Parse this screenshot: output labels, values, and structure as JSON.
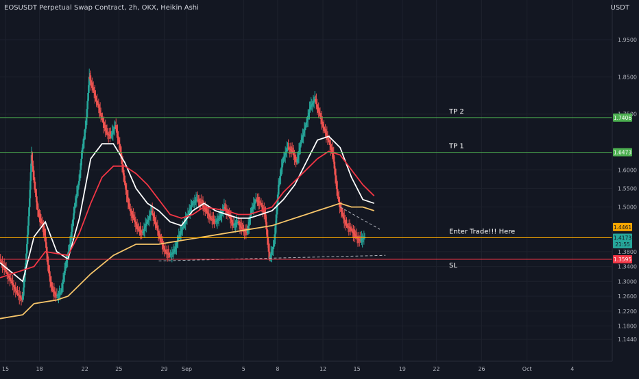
{
  "header": {
    "title": "EOSUSDT Perpetual Swap Contract, 2h, OKX, Heikin Ashi",
    "currency": "USDT"
  },
  "chart_data": {
    "type": "candlestick",
    "title": "EOSUSDT Perpetual Swap Contract, 2h, OKX, Heikin Ashi",
    "ylim": [
      1.1,
      2.02
    ],
    "y_ticks": [
      "1.9500",
      "1.8500",
      "1.7500",
      "1.6000",
      "1.5500",
      "1.5000",
      "1.3800",
      "1.3400",
      "1.3000",
      "1.2600",
      "1.2200",
      "1.1800",
      "1.1440"
    ],
    "y_tick_values": [
      1.95,
      1.85,
      1.75,
      1.6,
      1.55,
      1.5,
      1.38,
      1.34,
      1.3,
      1.26,
      1.22,
      1.18,
      1.144
    ],
    "x_ticks": [
      "15",
      "18",
      "22",
      "25",
      "29",
      "Sep",
      "5",
      "8",
      "12",
      "15",
      "19",
      "22",
      "26",
      "Oct",
      "4"
    ],
    "x_tick_positions": [
      0,
      3,
      7,
      10,
      14,
      16,
      21,
      24,
      28,
      31,
      35,
      38,
      42,
      46,
      50
    ],
    "x_max": 54,
    "price_series": [
      [
        0,
        1.36
      ],
      [
        0.5,
        1.33
      ],
      [
        1,
        1.3
      ],
      [
        1.5,
        1.27
      ],
      [
        2,
        1.25
      ],
      [
        2.3,
        1.35
      ],
      [
        2.6,
        1.5
      ],
      [
        2.8,
        1.64
      ],
      [
        3.1,
        1.55
      ],
      [
        3.4,
        1.48
      ],
      [
        3.7,
        1.46
      ],
      [
        4,
        1.42
      ],
      [
        4.3,
        1.33
      ],
      [
        4.6,
        1.28
      ],
      [
        5,
        1.26
      ],
      [
        5.4,
        1.27
      ],
      [
        5.8,
        1.34
      ],
      [
        6.2,
        1.4
      ],
      [
        6.6,
        1.5
      ],
      [
        7,
        1.57
      ],
      [
        7.3,
        1.66
      ],
      [
        7.6,
        1.72
      ],
      [
        7.9,
        1.85
      ],
      [
        8.2,
        1.82
      ],
      [
        8.6,
        1.78
      ],
      [
        9,
        1.74
      ],
      [
        9.4,
        1.7
      ],
      [
        9.8,
        1.69
      ],
      [
        10.2,
        1.72
      ],
      [
        10.6,
        1.66
      ],
      [
        11,
        1.57
      ],
      [
        11.4,
        1.5
      ],
      [
        11.8,
        1.47
      ],
      [
        12.2,
        1.44
      ],
      [
        12.6,
        1.43
      ],
      [
        13,
        1.46
      ],
      [
        13.4,
        1.49
      ],
      [
        13.8,
        1.45
      ],
      [
        14.2,
        1.41
      ],
      [
        14.6,
        1.38
      ],
      [
        15,
        1.37
      ],
      [
        15.4,
        1.38
      ],
      [
        15.8,
        1.42
      ],
      [
        16.2,
        1.45
      ],
      [
        16.6,
        1.48
      ],
      [
        17,
        1.51
      ],
      [
        17.4,
        1.52
      ],
      [
        17.8,
        1.51
      ],
      [
        18.2,
        1.49
      ],
      [
        18.6,
        1.47
      ],
      [
        19,
        1.46
      ],
      [
        19.4,
        1.47
      ],
      [
        19.8,
        1.5
      ],
      [
        20.2,
        1.48
      ],
      [
        20.6,
        1.45
      ],
      [
        21,
        1.46
      ],
      [
        21.4,
        1.44
      ],
      [
        21.8,
        1.43
      ],
      [
        22.2,
        1.49
      ],
      [
        22.6,
        1.52
      ],
      [
        23,
        1.51
      ],
      [
        23.4,
        1.48
      ],
      [
        23.8,
        1.36
      ],
      [
        24.2,
        1.4
      ],
      [
        24.6,
        1.56
      ],
      [
        25,
        1.63
      ],
      [
        25.4,
        1.66
      ],
      [
        25.8,
        1.65
      ],
      [
        26.2,
        1.62
      ],
      [
        26.6,
        1.68
      ],
      [
        27,
        1.72
      ],
      [
        27.4,
        1.77
      ],
      [
        27.8,
        1.79
      ],
      [
        28.2,
        1.75
      ],
      [
        28.6,
        1.71
      ],
      [
        29,
        1.68
      ],
      [
        29.4,
        1.64
      ],
      [
        29.8,
        1.53
      ],
      [
        30.2,
        1.48
      ],
      [
        30.6,
        1.45
      ],
      [
        31,
        1.44
      ],
      [
        31.4,
        1.42
      ],
      [
        31.8,
        1.41
      ],
      [
        32.2,
        1.42
      ]
    ],
    "moving_averages": [
      {
        "color": "#ffffff",
        "points": [
          [
            0,
            1.35
          ],
          [
            2,
            1.3
          ],
          [
            3,
            1.42
          ],
          [
            4,
            1.46
          ],
          [
            5,
            1.38
          ],
          [
            6,
            1.36
          ],
          [
            7,
            1.47
          ],
          [
            8,
            1.63
          ],
          [
            9,
            1.67
          ],
          [
            10,
            1.67
          ],
          [
            11,
            1.62
          ],
          [
            12,
            1.55
          ],
          [
            13,
            1.51
          ],
          [
            14,
            1.49
          ],
          [
            15,
            1.46
          ],
          [
            16,
            1.45
          ],
          [
            17,
            1.49
          ],
          [
            18,
            1.51
          ],
          [
            19,
            1.49
          ],
          [
            20,
            1.48
          ],
          [
            21,
            1.47
          ],
          [
            22,
            1.47
          ],
          [
            23,
            1.48
          ],
          [
            24,
            1.49
          ],
          [
            25,
            1.52
          ],
          [
            26,
            1.56
          ],
          [
            27,
            1.62
          ],
          [
            28,
            1.68
          ],
          [
            29,
            1.69
          ],
          [
            30,
            1.66
          ],
          [
            31,
            1.58
          ],
          [
            32,
            1.52
          ],
          [
            33,
            1.51
          ]
        ]
      },
      {
        "color": "#f23645",
        "points": [
          [
            0,
            1.31
          ],
          [
            3,
            1.34
          ],
          [
            4,
            1.38
          ],
          [
            6,
            1.37
          ],
          [
            7,
            1.43
          ],
          [
            8,
            1.51
          ],
          [
            9,
            1.58
          ],
          [
            10,
            1.61
          ],
          [
            11,
            1.61
          ],
          [
            12,
            1.59
          ],
          [
            13,
            1.56
          ],
          [
            14,
            1.52
          ],
          [
            15,
            1.48
          ],
          [
            16,
            1.47
          ],
          [
            17,
            1.48
          ],
          [
            18,
            1.5
          ],
          [
            20,
            1.49
          ],
          [
            21,
            1.48
          ],
          [
            22,
            1.48
          ],
          [
            23,
            1.49
          ],
          [
            24,
            1.5
          ],
          [
            25,
            1.54
          ],
          [
            26,
            1.57
          ],
          [
            27,
            1.6
          ],
          [
            28,
            1.63
          ],
          [
            29,
            1.65
          ],
          [
            30,
            1.64
          ],
          [
            31,
            1.6
          ],
          [
            32,
            1.56
          ],
          [
            33,
            1.53
          ]
        ]
      },
      {
        "color": "#f7c66a",
        "points": [
          [
            0,
            1.2
          ],
          [
            2,
            1.21
          ],
          [
            3,
            1.24
          ],
          [
            5,
            1.25
          ],
          [
            6,
            1.26
          ],
          [
            8,
            1.32
          ],
          [
            10,
            1.37
          ],
          [
            12,
            1.4
          ],
          [
            14,
            1.4
          ],
          [
            16,
            1.41
          ],
          [
            18,
            1.42
          ],
          [
            20,
            1.43
          ],
          [
            22,
            1.44
          ],
          [
            24,
            1.45
          ],
          [
            25,
            1.46
          ],
          [
            26,
            1.47
          ],
          [
            27,
            1.48
          ],
          [
            28,
            1.49
          ],
          [
            29,
            1.5
          ],
          [
            30,
            1.51
          ],
          [
            31,
            1.5
          ],
          [
            32,
            1.5
          ],
          [
            33,
            1.49
          ]
        ]
      }
    ],
    "horizontal_levels": [
      {
        "label": "TP 2",
        "price": 1.7406,
        "price_label": "1.7406",
        "color": "#4caf50",
        "badge": "#4caf50"
      },
      {
        "label": "TP 1",
        "price": 1.6473,
        "price_label": "1.6473",
        "color": "#4caf50",
        "badge": "#4caf50"
      },
      {
        "label": "Enter Trade!!! Here",
        "price": 1.4175,
        "price_label": "1.4175",
        "color": "#f7a600",
        "badge": "#f23645"
      },
      {
        "label": "SL",
        "price": 1.3595,
        "price_label": "1.3595",
        "color": "#f23645",
        "badge": "#f23645"
      }
    ],
    "price_badges": [
      {
        "text": "1.4461",
        "price": 1.4461,
        "color": "#f7a600"
      },
      {
        "text": "1.4173",
        "price": 1.4173,
        "color": "#26a69a"
      },
      {
        "text": "21:55",
        "price": 1.4,
        "color": "#26a69a"
      }
    ],
    "dashed_lines": [
      {
        "from": [
          14,
          1.355
        ],
        "to": [
          34,
          1.37
        ]
      },
      {
        "from": [
          30,
          1.5
        ],
        "to": [
          33.5,
          1.44
        ]
      }
    ]
  }
}
